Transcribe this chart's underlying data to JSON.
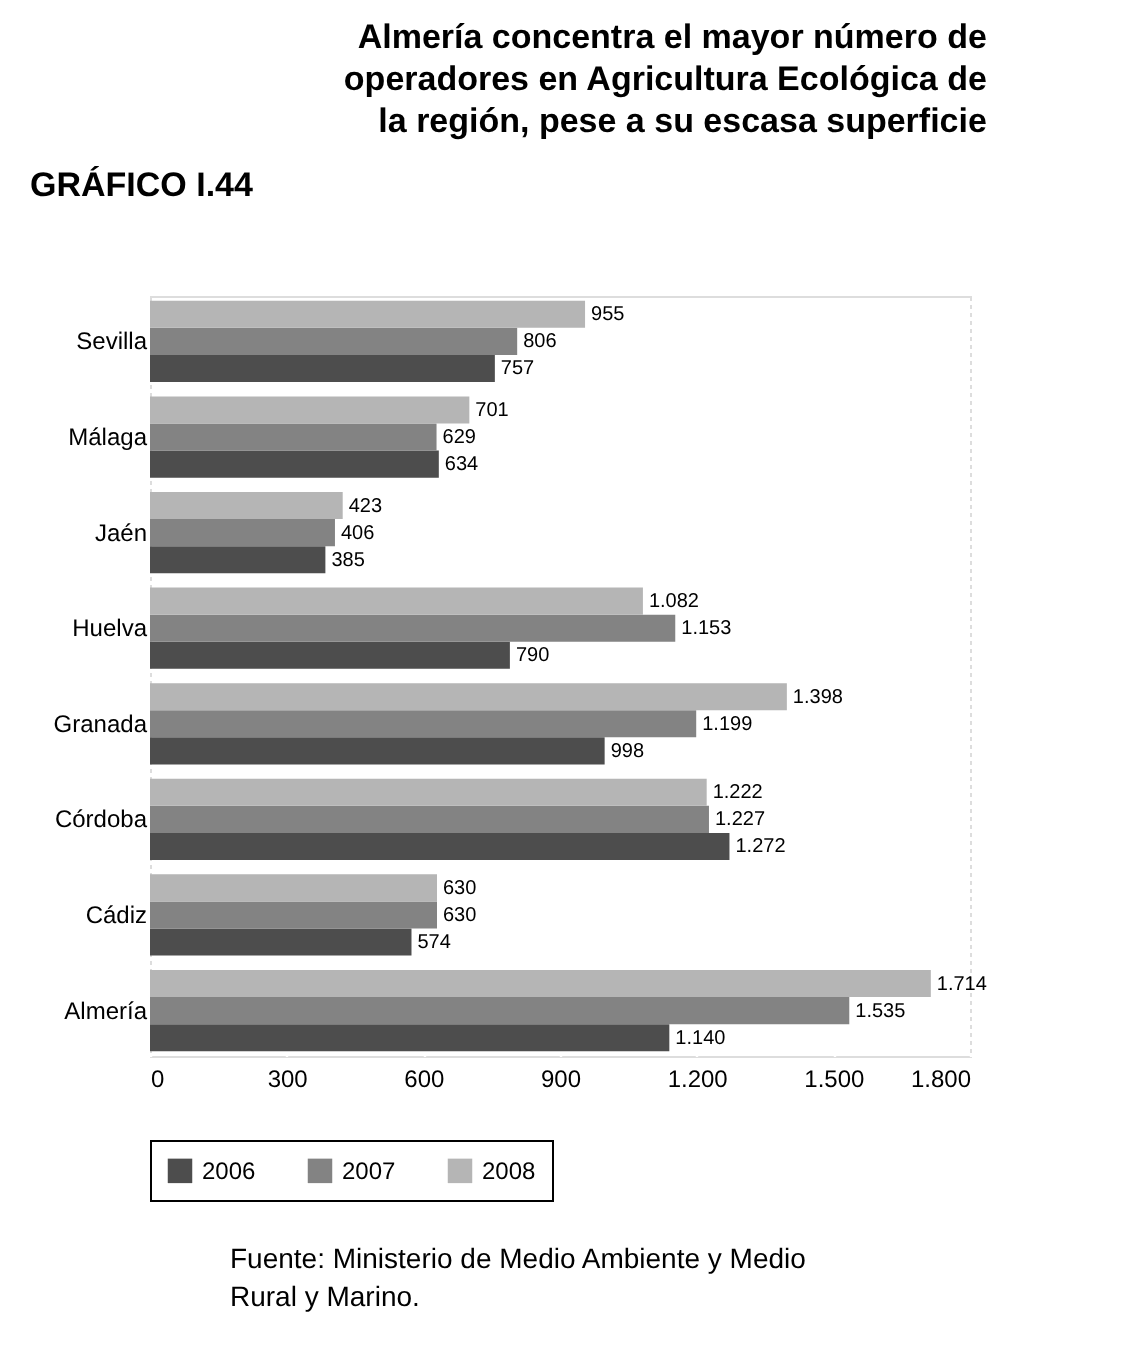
{
  "chart_data": {
    "type": "bar",
    "orientation": "horizontal",
    "title": "Almería concentra el mayor número de\noperadores en Agricultura Ecológica de\nla región, pese a su escasa superficie",
    "annotations": [
      "GRÁFICO I.44",
      "Fuente: Ministerio de Medio Ambiente y Medio Rural y Marino."
    ],
    "categories": [
      "Sevilla",
      "Málaga",
      "Jaén",
      "Huelva",
      "Granada",
      "Córdoba",
      "Cádiz",
      "Almería"
    ],
    "series": [
      {
        "name": "2006",
        "color": "#4d4d4d",
        "values": [
          757,
          634,
          385,
          790,
          998,
          1272,
          574,
          1140
        ],
        "value_labels": [
          "757",
          "634",
          "385",
          "790",
          "998",
          "1.272",
          "574",
          "1.140"
        ]
      },
      {
        "name": "2007",
        "color": "#838383",
        "values": [
          806,
          629,
          406,
          1153,
          1199,
          1227,
          630,
          1535
        ],
        "value_labels": [
          "806",
          "629",
          "406",
          "1.153",
          "1.199",
          "1.227",
          "630",
          "1.535"
        ]
      },
      {
        "name": "2008",
        "color": "#b5b5b5",
        "values": [
          955,
          701,
          423,
          1082,
          1398,
          1222,
          630,
          1714
        ],
        "value_labels": [
          "955",
          "701",
          "423",
          "1.082",
          "1.398",
          "1.222",
          "630",
          "1.714"
        ]
      }
    ],
    "xlim": [
      0,
      1800
    ],
    "xticks": [
      0,
      300,
      600,
      900,
      {
        "value": 1200,
        "label": "1.200"
      },
      {
        "value": 1500,
        "label": "1.500"
      },
      {
        "value": 1800,
        "label": "1.800"
      }
    ],
    "grid": "x",
    "legend": "bottom"
  }
}
